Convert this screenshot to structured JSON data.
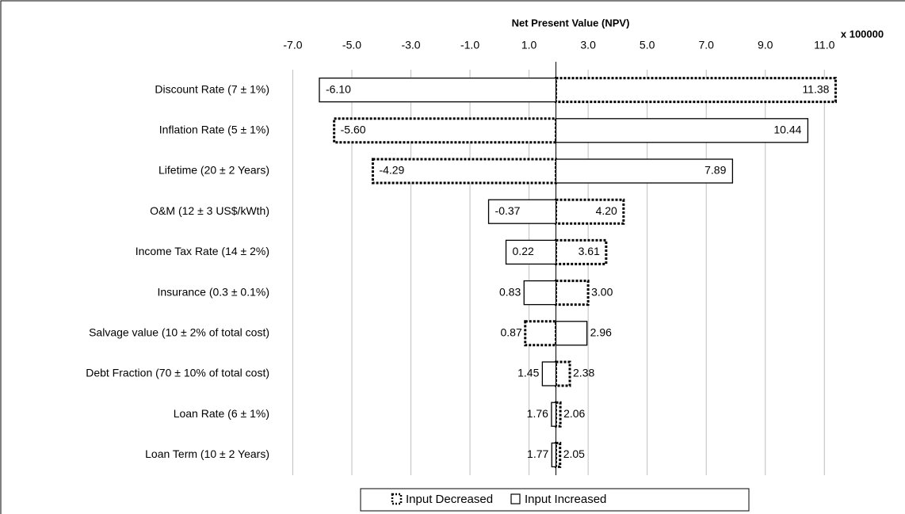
{
  "chart_data": {
    "type": "tornado",
    "x_axis_label": "Net Present Value (NPV)",
    "x_multiplier": "x 100000",
    "categories": [
      "Discount Rate (7 ± 1%)",
      "Inflation Rate (5 ± 1%)",
      "Lifetime (20 ± 2 Years)",
      "O&M (12 ± 3 US$/kWth)",
      "Income Tax Rate (14 ± 2%)",
      "Insurance (0.3 ± 0.1%)",
      "Salvage value (10 ± 2% of total cost)",
      "Debt Fraction (70 ± 10% of total cost)",
      "Loan Rate (6 ± 1%)",
      "Loan Term (10 ± 2 Years)"
    ],
    "series": [
      {
        "name": "Input Decreased",
        "style": "dotted",
        "color": "#000000",
        "values": [
          11.38,
          -5.6,
          -4.29,
          4.2,
          3.61,
          3.0,
          0.87,
          2.38,
          2.06,
          2.05
        ],
        "value_labels": [
          "11.38",
          "-5.60",
          "-4.29",
          "4.20",
          "3.61",
          "3.00",
          "0.87",
          "2.38",
          "2.06",
          "2.05"
        ]
      },
      {
        "name": "Input Increased",
        "style": "solid",
        "color": "#000000",
        "values": [
          -6.1,
          10.44,
          7.89,
          -0.37,
          0.22,
          0.83,
          2.96,
          1.45,
          1.76,
          1.77
        ],
        "value_labels": [
          "-6.10",
          "10.44",
          "7.89",
          "-0.37",
          "0.22",
          "0.83",
          "2.96",
          "1.45",
          "1.76",
          "1.77"
        ]
      }
    ],
    "xlim": [
      -7.2,
      12.2
    ],
    "xticks": [
      {
        "value": -7,
        "label": "-7.0"
      },
      {
        "value": -5,
        "label": "-5.0"
      },
      {
        "value": -3,
        "label": "-3.0"
      },
      {
        "value": -1,
        "label": "-1.0"
      },
      {
        "value": 1,
        "label": "1.0"
      },
      {
        "value": 3,
        "label": "3.0"
      },
      {
        "value": 5,
        "label": "5.0"
      },
      {
        "value": 7,
        "label": "7.0"
      },
      {
        "value": 9,
        "label": "9.0"
      },
      {
        "value": 11,
        "label": "11.0"
      }
    ],
    "grid": true,
    "legend": "bottom"
  }
}
